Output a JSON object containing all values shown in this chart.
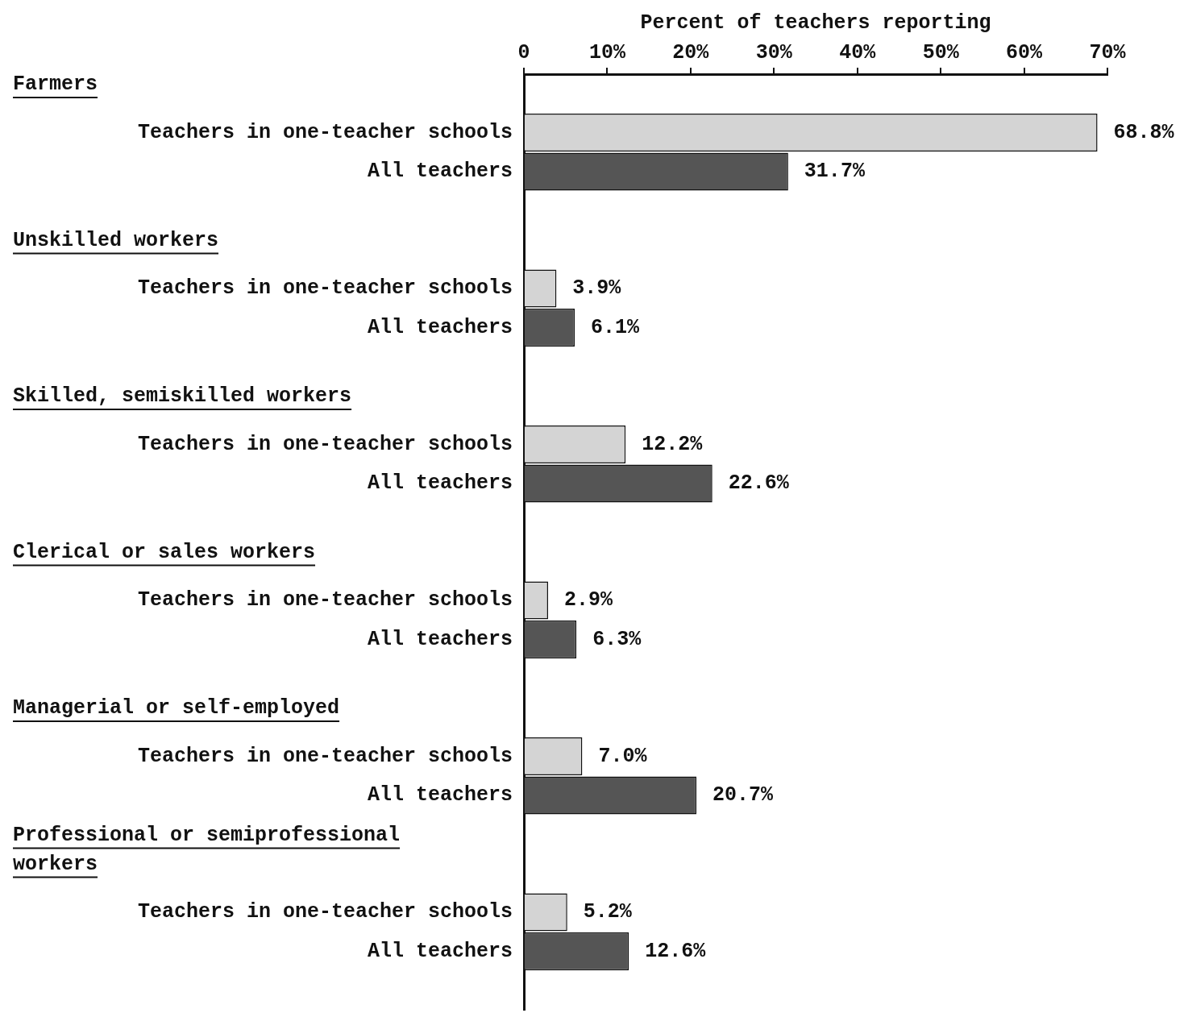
{
  "chart_data": {
    "type": "bar",
    "orientation": "horizontal",
    "xlabel": "Percent of teachers reporting",
    "categories": [
      "Farmers",
      "Unskilled workers",
      "Skilled, semiskilled workers",
      "Clerical or sales workers",
      "Managerial or self-employed",
      "Professional or semiprofessional workers"
    ],
    "series": [
      {
        "name": "Teachers in one-teacher schools",
        "color": "#d4d4d4",
        "values": [
          68.8,
          3.9,
          12.2,
          2.9,
          7.0,
          5.2
        ],
        "value_labels": [
          "68.8%",
          "3.9%",
          "12.2%",
          "2.9%",
          "7.0%",
          "5.2%"
        ]
      },
      {
        "name": "All teachers",
        "color": "#555555",
        "values": [
          31.7,
          6.1,
          22.6,
          6.3,
          20.7,
          12.6
        ],
        "value_labels": [
          "31.7%",
          "6.1%",
          "22.6%",
          "6.3%",
          "20.7%",
          "12.6%"
        ]
      }
    ],
    "xlim": [
      0,
      70
    ],
    "xticks": [
      0,
      {
        "value": 10,
        "label": "10%"
      },
      {
        "value": 20,
        "label": "20%"
      },
      {
        "value": 30,
        "label": "30%"
      },
      {
        "value": 40,
        "label": "40%"
      },
      {
        "value": 50,
        "label": "50%"
      },
      {
        "value": 60,
        "label": "60%"
      },
      {
        "value": 70,
        "label": "70%"
      }
    ],
    "grid": false,
    "legend": false
  }
}
